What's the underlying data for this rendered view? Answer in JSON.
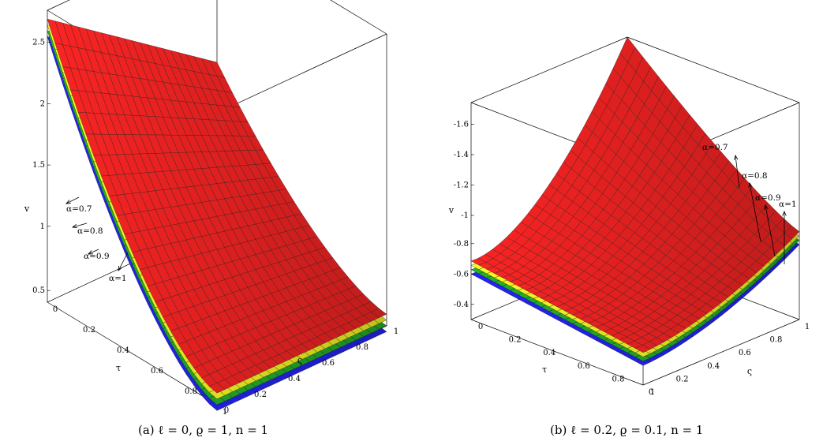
{
  "chart_data": [
    {
      "type": "surface3d",
      "caption": "(a) ℓ = 0, ϱ = 1, n = 1",
      "zlabel": "v",
      "xlabel": "τ",
      "ylabel": "ς",
      "ztick_labels": [
        "0.5",
        "1",
        "1.5",
        "2",
        "2.5"
      ],
      "xtick_labels": [
        "0",
        "0.2",
        "0.4",
        "0.6",
        "0.8",
        "1"
      ],
      "ytick_labels": [
        "0",
        "0.2",
        "0.4",
        "0.6",
        "0.8",
        "1"
      ],
      "xlim": [
        0,
        1
      ],
      "ylim": [
        0,
        1
      ],
      "zlim": [
        0.4,
        2.75
      ],
      "series": [
        {
          "name": "α=1",
          "color": "#ee2222",
          "offset": 0.0
        },
        {
          "name": "α=0.9",
          "color": "#eeee22",
          "offset": 0.02
        },
        {
          "name": "α=0.8",
          "color": "#22aa22",
          "offset": 0.04
        },
        {
          "name": "α=0.7",
          "color": "#2222ee",
          "offset": 0.06
        }
      ],
      "annotations": [
        "α=0.7",
        "α=0.8",
        "α=0.9",
        "α=1"
      ]
    },
    {
      "type": "surface3d",
      "caption": "(b) ℓ = 0.2, ϱ = 0.1, n = 1",
      "zlabel": "v",
      "xlabel": "τ",
      "ylabel": "ς",
      "ztick_labels": [
        "-0.4",
        "-0.6",
        "-0.8",
        "-1",
        "-1.2",
        "-1.4",
        "-1.6"
      ],
      "xtick_labels": [
        "0",
        "0.2",
        "0.4",
        "0.6",
        "0.8",
        "1"
      ],
      "ytick_labels": [
        "0",
        "0.2",
        "0.4",
        "0.6",
        "0.8",
        "1"
      ],
      "xlim": [
        0,
        1
      ],
      "ylim": [
        0,
        1
      ],
      "zlim": [
        -0.3,
        -1.75
      ],
      "series": [
        {
          "name": "α=1",
          "color": "#ee2222",
          "offset": 0.0
        },
        {
          "name": "α=0.9",
          "color": "#eeee22",
          "offset": 0.02
        },
        {
          "name": "α=0.8",
          "color": "#22aa22",
          "offset": 0.04
        },
        {
          "name": "α=0.7",
          "color": "#2222ee",
          "offset": 0.06
        }
      ],
      "annotations": [
        "α=0.7",
        "α=0.8",
        "α=0.9",
        "α=1"
      ]
    }
  ]
}
